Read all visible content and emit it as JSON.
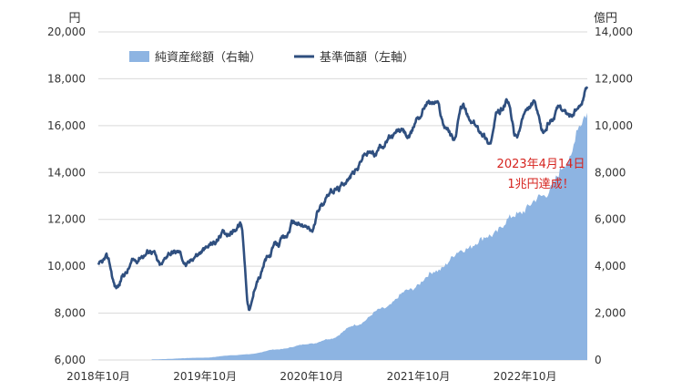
{
  "chart_data": {
    "type": "line+area",
    "title": "",
    "left_axis": {
      "unit": "円",
      "ylim": [
        6000,
        20000
      ],
      "ticks": [
        "6,000",
        "8,000",
        "10,000",
        "12,000",
        "14,000",
        "16,000",
        "18,000",
        "20,000"
      ]
    },
    "right_axis": {
      "unit": "億円",
      "ylim": [
        0,
        14000
      ],
      "ticks": [
        "0",
        "2,000",
        "4,000",
        "6,000",
        "8,000",
        "10,000",
        "12,000",
        "14,000"
      ]
    },
    "x_ticks": [
      "2018年10月",
      "2019年10月",
      "2020年10月",
      "2021年10月",
      "2022年10月"
    ],
    "legend": [
      {
        "name": "純資産総額（右軸）",
        "color": "#8db4e2",
        "kind": "area"
      },
      {
        "name": "基準価額（左軸）",
        "color": "#2f4f7f",
        "kind": "line"
      }
    ],
    "annotation": {
      "line1": "2023年4月14日",
      "line2": "1兆円達成！"
    },
    "series": [
      {
        "name": "基準価額（左軸）",
        "axis": "left",
        "points": [
          [
            "2018-10",
            10000
          ],
          [
            "2018-11",
            10300
          ],
          [
            "2018-12",
            9100
          ],
          [
            "2019-01",
            9700
          ],
          [
            "2019-02",
            10200
          ],
          [
            "2019-03",
            10500
          ],
          [
            "2019-04",
            10700
          ],
          [
            "2019-05",
            10000
          ],
          [
            "2019-06",
            10600
          ],
          [
            "2019-07",
            10600
          ],
          [
            "2019-08",
            10050
          ],
          [
            "2019-09",
            10500
          ],
          [
            "2019-10",
            10700
          ],
          [
            "2019-11",
            11000
          ],
          [
            "2019-12",
            11400
          ],
          [
            "2020-01",
            11500
          ],
          [
            "2020-02",
            11800
          ],
          [
            "2020-03",
            8200
          ],
          [
            "2020-04",
            9500
          ],
          [
            "2020-05",
            10300
          ],
          [
            "2020-06",
            10900
          ],
          [
            "2020-07",
            11200
          ],
          [
            "2020-08",
            11900
          ],
          [
            "2020-09",
            11700
          ],
          [
            "2020-10",
            11500
          ],
          [
            "2020-11",
            12600
          ],
          [
            "2020-12",
            13200
          ],
          [
            "2021-01",
            13300
          ],
          [
            "2021-02",
            13700
          ],
          [
            "2021-03",
            14100
          ],
          [
            "2021-04",
            14800
          ],
          [
            "2021-05",
            14800
          ],
          [
            "2021-06",
            15200
          ],
          [
            "2021-07",
            15500
          ],
          [
            "2021-08",
            15800
          ],
          [
            "2021-09",
            15500
          ],
          [
            "2021-10",
            16400
          ],
          [
            "2021-11",
            17000
          ],
          [
            "2021-12",
            17000
          ],
          [
            "2022-01",
            16000
          ],
          [
            "2022-02",
            15500
          ],
          [
            "2022-03",
            16800
          ],
          [
            "2022-04",
            16100
          ],
          [
            "2022-05",
            15800
          ],
          [
            "2022-06",
            15300
          ],
          [
            "2022-07",
            16600
          ],
          [
            "2022-08",
            17000
          ],
          [
            "2022-09",
            15500
          ],
          [
            "2022-10",
            16500
          ],
          [
            "2022-11",
            16900
          ],
          [
            "2022-12",
            15700
          ],
          [
            "2023-01",
            16300
          ],
          [
            "2023-02",
            16800
          ],
          [
            "2023-03",
            16400
          ],
          [
            "2023-04",
            16700
          ],
          [
            "2023-05",
            17600
          ]
        ]
      },
      {
        "name": "純資産総額（右軸）",
        "axis": "right",
        "points": [
          [
            "2019-04",
            30
          ],
          [
            "2019-10",
            100
          ],
          [
            "2020-01",
            200
          ],
          [
            "2020-03",
            250
          ],
          [
            "2020-06",
            450
          ],
          [
            "2020-10",
            700
          ],
          [
            "2020-12",
            900
          ],
          [
            "2021-03",
            1500
          ],
          [
            "2021-06",
            2200
          ],
          [
            "2021-09",
            3000
          ],
          [
            "2021-12",
            3800
          ],
          [
            "2022-03",
            4700
          ],
          [
            "2022-06",
            5300
          ],
          [
            "2022-09",
            6200
          ],
          [
            "2022-12",
            7000
          ],
          [
            "2023-03",
            8500
          ],
          [
            "2023-04",
            10000
          ],
          [
            "2023-05",
            10500
          ]
        ]
      }
    ]
  }
}
